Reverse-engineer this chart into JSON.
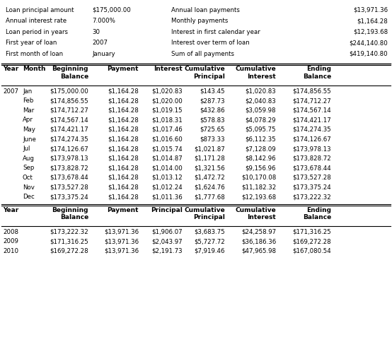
{
  "summary_labels": [
    "Loan principal amount",
    "Annual interest rate",
    "Loan period in years",
    "First year of loan",
    "First month of loan"
  ],
  "summary_values": [
    "$175,000.00",
    "7.000%",
    "30",
    "2007",
    "January"
  ],
  "summary_labels2": [
    "Annual loan payments",
    "Monthly payments",
    "Interest in first calendar year",
    "Interest over term of loan",
    "Sum of all payments"
  ],
  "summary_values2": [
    "$13,971.36",
    "$1,164.28",
    "$12,193.68",
    "$244,140.80",
    "$419,140.80"
  ],
  "header1": [
    "Year",
    "Month",
    "Beginning\nBalance",
    "Payment",
    "Interest",
    "Cumulative\nPrincipal",
    "Cumulative\nInterest",
    "Ending\nBalance"
  ],
  "monthly_data": [
    [
      "2007",
      "Jan",
      "$175,000.00",
      "$1,164.28",
      "$1,020.83",
      "$143.45",
      "$1,020.83",
      "$174,856.55"
    ],
    [
      "",
      "Feb",
      "$174,856.55",
      "$1,164.28",
      "$1,020.00",
      "$287.73",
      "$2,040.83",
      "$174,712.27"
    ],
    [
      "",
      "Mar",
      "$174,712.27",
      "$1,164.28",
      "$1,019.15",
      "$432.86",
      "$3,059.98",
      "$174,567.14"
    ],
    [
      "",
      "Apr",
      "$174,567.14",
      "$1,164.28",
      "$1,018.31",
      "$578.83",
      "$4,078.29",
      "$174,421.17"
    ],
    [
      "",
      "May",
      "$174,421.17",
      "$1,164.28",
      "$1,017.46",
      "$725.65",
      "$5,095.75",
      "$174,274.35"
    ],
    [
      "",
      "June",
      "$174,274.35",
      "$1,164.28",
      "$1,016.60",
      "$873.33",
      "$6,112.35",
      "$174,126.67"
    ],
    [
      "",
      "Jul",
      "$174,126.67",
      "$1,164.28",
      "$1,015.74",
      "$1,021.87",
      "$7,128.09",
      "$173,978.13"
    ],
    [
      "",
      "Aug",
      "$173,978.13",
      "$1,164.28",
      "$1,014.87",
      "$1,171.28",
      "$8,142.96",
      "$173,828.72"
    ],
    [
      "",
      "Sep",
      "$173,828.72",
      "$1,164.28",
      "$1,014.00",
      "$1,321.56",
      "$9,156.96",
      "$173,678.44"
    ],
    [
      "",
      "Oct",
      "$173,678.44",
      "$1,164.28",
      "$1,013.12",
      "$1,472.72",
      "$10,170.08",
      "$173,527.28"
    ],
    [
      "",
      "Nov",
      "$173,527.28",
      "$1,164.28",
      "$1,012.24",
      "$1,624.76",
      "$11,182.32",
      "$173,375.24"
    ],
    [
      "",
      "Dec",
      "$173,375.24",
      "$1,164.28",
      "$1,011.36",
      "$1,777.68",
      "$12,193.68",
      "$173,222.32"
    ]
  ],
  "header2_line1": [
    "Year",
    "",
    "Beginning",
    "Payment",
    "Principal",
    "Cumulative",
    "Cumulative",
    "Ending"
  ],
  "header2_line2": [
    "",
    "",
    "Balance",
    "",
    "",
    "Principal",
    "Interest",
    "Balance"
  ],
  "annual_data": [
    [
      "2008",
      "",
      "$173,222.32",
      "$13,971.36",
      "$1,906.07",
      "$3,683.75",
      "$24,258.97",
      "$171,316.25"
    ],
    [
      "2009",
      "",
      "$171,316.25",
      "$13,971.36",
      "$2,043.97",
      "$5,727.72",
      "$36,186.36",
      "$169,272.28"
    ],
    [
      "2010",
      "",
      "$169,272.28",
      "$13,971.36",
      "$2,191.73",
      "$7,919.46",
      "$47,965.98",
      "$167,080.54"
    ]
  ],
  "bg_color": "#ffffff",
  "text_color": "#000000",
  "line_color": "#000000",
  "font_size": 6.2,
  "header_font_size": 6.5
}
